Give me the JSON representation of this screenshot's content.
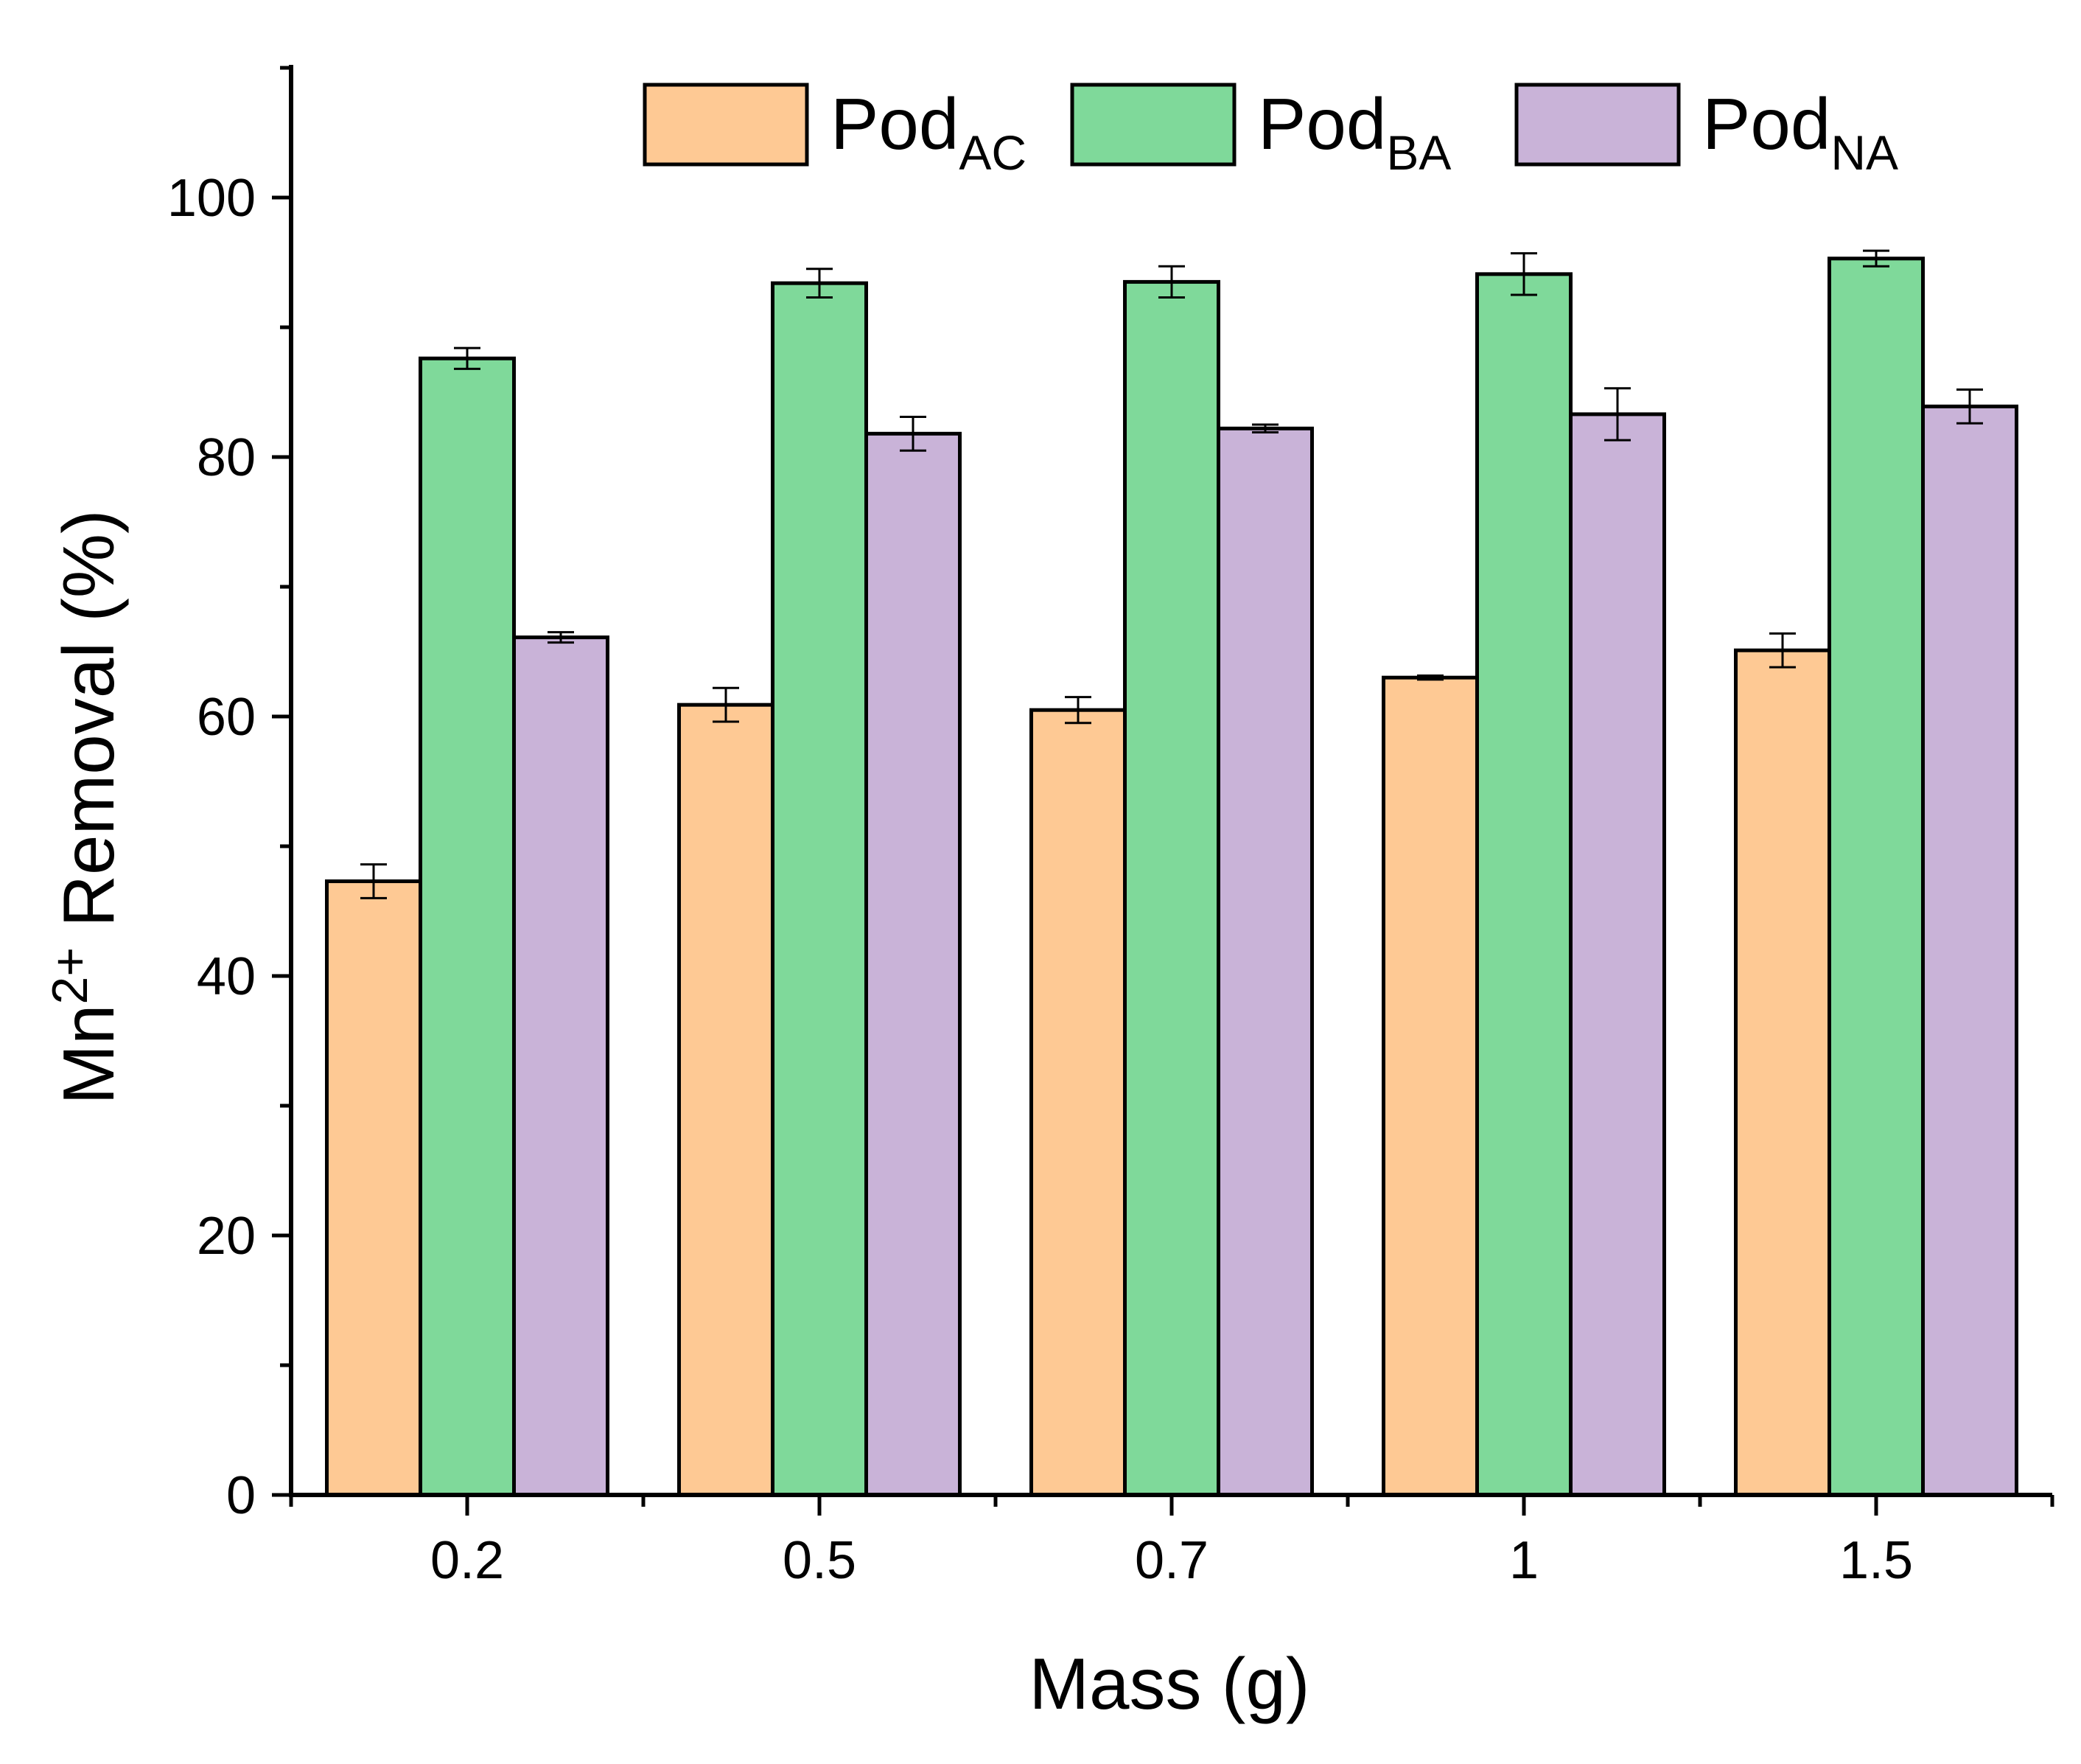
{
  "chart_data": {
    "type": "bar",
    "categories": [
      "0.2",
      "0.5",
      "0.7",
      "1",
      "1.5"
    ],
    "series": [
      {
        "name": "PodAC",
        "label_main": "Pod",
        "label_sub": "AC",
        "color": "#FEC994",
        "values": [
          47.3,
          60.9,
          60.5,
          63.0,
          65.1
        ],
        "errors": [
          1.3,
          1.3,
          1.0,
          0.15,
          1.3
        ]
      },
      {
        "name": "PodBA",
        "label_main": "Pod",
        "label_sub": "BA",
        "color": "#7FD99A",
        "values": [
          87.6,
          93.4,
          93.5,
          94.1,
          95.3
        ],
        "errors": [
          0.8,
          1.1,
          1.2,
          1.6,
          0.6
        ]
      },
      {
        "name": "PodNA",
        "label_main": "Pod",
        "label_sub": "NA",
        "color": "#C9B3D8",
        "values": [
          66.1,
          81.8,
          82.2,
          83.3,
          83.9
        ],
        "errors": [
          0.4,
          1.3,
          0.3,
          2.0,
          1.3
        ]
      }
    ],
    "xlabel": "Mass (g)",
    "ylabel_main": "Mn",
    "ylabel_sup": "2+",
    "ylabel_rest": " Removal (%)",
    "ylim": [
      0,
      110
    ],
    "yticks": [
      "0",
      "20",
      "40",
      "60",
      "80",
      "100"
    ],
    "ytick_values": [
      0,
      20,
      40,
      60,
      80,
      100
    ],
    "grid": false,
    "legend_position": "top"
  }
}
